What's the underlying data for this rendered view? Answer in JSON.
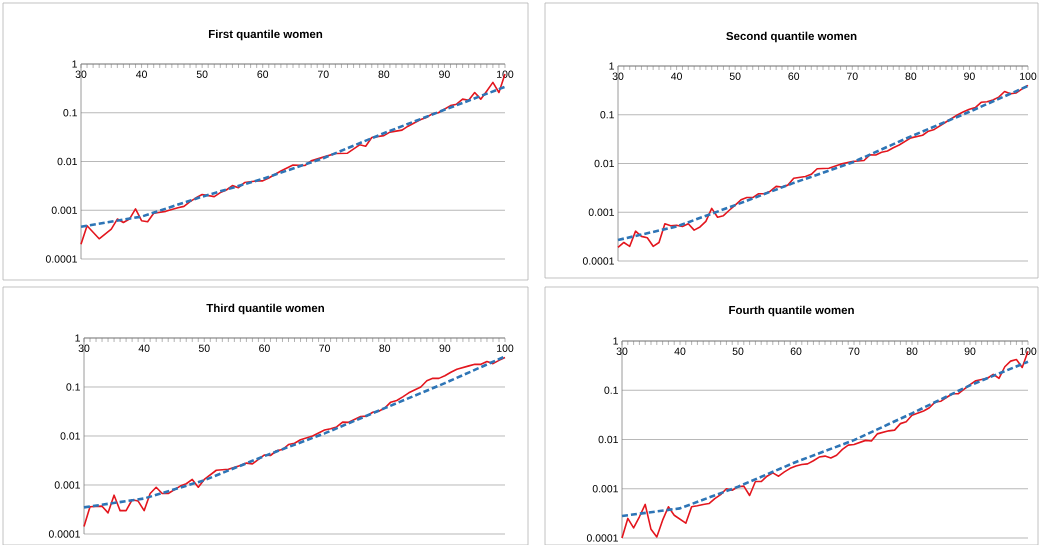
{
  "chart_data": [
    {
      "type": "line",
      "title": "First quantile women",
      "xlim": [
        30,
        100
      ],
      "ylim": [
        0.0001,
        1
      ],
      "log": "y",
      "grid": "y",
      "xticks": [
        30,
        {
          "value": 31,
          "label": null
        },
        {
          "value": 32,
          "label": null
        },
        {
          "value": 33,
          "label": null
        },
        {
          "value": 34,
          "label": null
        },
        {
          "value": 35,
          "label": null
        },
        {
          "value": 36,
          "label": null
        },
        {
          "value": 37,
          "label": null
        },
        {
          "value": 38,
          "label": null
        },
        {
          "value": 39,
          "label": null
        },
        40,
        {
          "value": 41,
          "label": null
        },
        {
          "value": 42,
          "label": null
        },
        {
          "value": 43,
          "label": null
        },
        {
          "value": 44,
          "label": null
        },
        {
          "value": 45,
          "label": null
        },
        {
          "value": 46,
          "label": null
        },
        {
          "value": 47,
          "label": null
        },
        {
          "value": 48,
          "label": null
        },
        {
          "value": 49,
          "label": null
        },
        50,
        {
          "value": 51,
          "label": null
        },
        {
          "value": 52,
          "label": null
        },
        {
          "value": 53,
          "label": null
        },
        {
          "value": 54,
          "label": null
        },
        {
          "value": 55,
          "label": null
        },
        {
          "value": 56,
          "label": null
        },
        {
          "value": 57,
          "label": null
        },
        {
          "value": 58,
          "label": null
        },
        {
          "value": 59,
          "label": null
        },
        60,
        {
          "value": 61,
          "label": null
        },
        {
          "value": 62,
          "label": null
        },
        {
          "value": 63,
          "label": null
        },
        {
          "value": 64,
          "label": null
        },
        {
          "value": 65,
          "label": null
        },
        {
          "value": 66,
          "label": null
        },
        {
          "value": 67,
          "label": null
        },
        {
          "value": 68,
          "label": null
        },
        {
          "value": 69,
          "label": null
        },
        70,
        {
          "value": 71,
          "label": null
        },
        {
          "value": 72,
          "label": null
        },
        {
          "value": 73,
          "label": null
        },
        {
          "value": 74,
          "label": null
        },
        {
          "value": 75,
          "label": null
        },
        {
          "value": 76,
          "label": null
        },
        {
          "value": 77,
          "label": null
        },
        {
          "value": 78,
          "label": null
        },
        {
          "value": 79,
          "label": null
        },
        80,
        {
          "value": 81,
          "label": null
        },
        {
          "value": 82,
          "label": null
        },
        {
          "value": 83,
          "label": null
        },
        {
          "value": 84,
          "label": null
        },
        {
          "value": 85,
          "label": null
        },
        {
          "value": 86,
          "label": null
        },
        {
          "value": 87,
          "label": null
        },
        {
          "value": 88,
          "label": null
        },
        {
          "value": 89,
          "label": null
        },
        90,
        {
          "value": 91,
          "label": null
        },
        {
          "value": 92,
          "label": null
        },
        {
          "value": 93,
          "label": null
        },
        {
          "value": 94,
          "label": null
        },
        {
          "value": 95,
          "label": null
        },
        {
          "value": 96,
          "label": null
        },
        {
          "value": 97,
          "label": null
        },
        {
          "value": 98,
          "label": null
        },
        {
          "value": 99,
          "label": null
        },
        100
      ],
      "yticks": [
        0.0001,
        0.001,
        0.01,
        0.1,
        1
      ],
      "series": [
        {
          "color": "#e3161e",
          "line_style": "solid",
          "x": [
            30,
            31,
            33,
            35,
            36,
            37,
            38,
            39,
            40,
            41,
            42,
            44,
            46,
            47,
            48,
            49,
            50,
            52,
            53,
            54,
            55,
            56,
            57,
            59,
            60,
            61,
            63,
            65,
            67,
            68,
            70,
            72,
            74,
            76,
            77,
            78,
            80,
            81,
            83,
            84,
            86,
            87,
            88,
            89,
            91,
            92,
            93,
            94,
            95,
            96,
            97,
            98,
            99,
            100
          ],
          "values": [
            0.0002,
            0.00048,
            0.00026,
            0.00041,
            0.00066,
            0.00056,
            0.00066,
            0.00107,
            0.00061,
            0.00058,
            0.00087,
            0.00095,
            0.00113,
            0.0012,
            0.0015,
            0.0018,
            0.0021,
            0.0019,
            0.0023,
            0.0026,
            0.0032,
            0.0029,
            0.0037,
            0.004,
            0.004,
            0.0046,
            0.0064,
            0.0085,
            0.0083,
            0.0103,
            0.0123,
            0.0146,
            0.0148,
            0.022,
            0.0206,
            0.031,
            0.034,
            0.04,
            0.044,
            0.053,
            0.072,
            0.08,
            0.095,
            0.1,
            0.14,
            0.15,
            0.19,
            0.18,
            0.26,
            0.19,
            0.28,
            0.42,
            0.26,
            0.62
          ]
        },
        {
          "color": "#2e75b6",
          "line_style": "dashed",
          "x": [
            30,
            40,
            50,
            60,
            70,
            80,
            90,
            100
          ],
          "values": [
            0.00046,
            0.00074,
            0.0019,
            0.0044,
            0.0117,
            0.038,
            0.115,
            0.34
          ]
        }
      ]
    },
    {
      "type": "line",
      "title": "Second quantile women",
      "xlim": [
        30,
        100
      ],
      "ylim": [
        0.0001,
        1
      ],
      "log": "y",
      "grid": "y",
      "xticks": [
        30,
        {
          "value": 31,
          "label": null
        },
        {
          "value": 32,
          "label": null
        },
        {
          "value": 33,
          "label": null
        },
        {
          "value": 34,
          "label": null
        },
        {
          "value": 35,
          "label": null
        },
        {
          "value": 36,
          "label": null
        },
        {
          "value": 37,
          "label": null
        },
        {
          "value": 38,
          "label": null
        },
        {
          "value": 39,
          "label": null
        },
        40,
        {
          "value": 41,
          "label": null
        },
        {
          "value": 42,
          "label": null
        },
        {
          "value": 43,
          "label": null
        },
        {
          "value": 44,
          "label": null
        },
        {
          "value": 45,
          "label": null
        },
        {
          "value": 46,
          "label": null
        },
        {
          "value": 47,
          "label": null
        },
        {
          "value": 48,
          "label": null
        },
        {
          "value": 49,
          "label": null
        },
        50,
        {
          "value": 51,
          "label": null
        },
        {
          "value": 52,
          "label": null
        },
        {
          "value": 53,
          "label": null
        },
        {
          "value": 54,
          "label": null
        },
        {
          "value": 55,
          "label": null
        },
        {
          "value": 56,
          "label": null
        },
        {
          "value": 57,
          "label": null
        },
        {
          "value": 58,
          "label": null
        },
        {
          "value": 59,
          "label": null
        },
        60,
        {
          "value": 61,
          "label": null
        },
        {
          "value": 62,
          "label": null
        },
        {
          "value": 63,
          "label": null
        },
        {
          "value": 64,
          "label": null
        },
        {
          "value": 65,
          "label": null
        },
        {
          "value": 66,
          "label": null
        },
        {
          "value": 67,
          "label": null
        },
        {
          "value": 68,
          "label": null
        },
        {
          "value": 69,
          "label": null
        },
        70,
        {
          "value": 71,
          "label": null
        },
        {
          "value": 72,
          "label": null
        },
        {
          "value": 73,
          "label": null
        },
        {
          "value": 74,
          "label": null
        },
        {
          "value": 75,
          "label": null
        },
        {
          "value": 76,
          "label": null
        },
        {
          "value": 77,
          "label": null
        },
        {
          "value": 78,
          "label": null
        },
        {
          "value": 79,
          "label": null
        },
        80,
        {
          "value": 81,
          "label": null
        },
        {
          "value": 82,
          "label": null
        },
        {
          "value": 83,
          "label": null
        },
        {
          "value": 84,
          "label": null
        },
        {
          "value": 85,
          "label": null
        },
        {
          "value": 86,
          "label": null
        },
        {
          "value": 87,
          "label": null
        },
        {
          "value": 88,
          "label": null
        },
        {
          "value": 89,
          "label": null
        },
        90,
        {
          "value": 91,
          "label": null
        },
        {
          "value": 92,
          "label": null
        },
        {
          "value": 93,
          "label": null
        },
        {
          "value": 94,
          "label": null
        },
        {
          "value": 95,
          "label": null
        },
        {
          "value": 96,
          "label": null
        },
        {
          "value": 97,
          "label": null
        },
        {
          "value": 98,
          "label": null
        },
        {
          "value": 99,
          "label": null
        },
        100
      ],
      "yticks": [
        0.0001,
        0.001,
        0.01,
        0.1,
        1
      ],
      "series": [
        {
          "color": "#e3161e",
          "line_style": "solid",
          "x": [
            30,
            31,
            32,
            33,
            34,
            35,
            36,
            37,
            38,
            39,
            40,
            41,
            42,
            43,
            44,
            45,
            46,
            47,
            48,
            49,
            50,
            51,
            52,
            53,
            54,
            55,
            56,
            57,
            58,
            59,
            60,
            62,
            63,
            64,
            66,
            68,
            70,
            72,
            73,
            74,
            75,
            76,
            77,
            78,
            80,
            82,
            83,
            84,
            86,
            88,
            89,
            90,
            91,
            92,
            93,
            94,
            95,
            96,
            97,
            98,
            99,
            100
          ],
          "values": [
            0.00019,
            0.00024,
            0.0002,
            0.00041,
            0.00032,
            0.0003,
            0.0002,
            0.00024,
            0.00058,
            0.00053,
            0.00054,
            0.00051,
            0.00058,
            0.00043,
            0.0005,
            0.00065,
            0.0012,
            0.00079,
            0.00085,
            0.0011,
            0.0014,
            0.0018,
            0.002,
            0.002,
            0.0024,
            0.0024,
            0.0027,
            0.0034,
            0.0033,
            0.0036,
            0.005,
            0.0054,
            0.006,
            0.0078,
            0.008,
            0.0097,
            0.011,
            0.0115,
            0.015,
            0.0149,
            0.017,
            0.018,
            0.021,
            0.024,
            0.0335,
            0.038,
            0.046,
            0.05,
            0.071,
            0.1,
            0.115,
            0.13,
            0.14,
            0.18,
            0.185,
            0.2,
            0.23,
            0.3,
            0.27,
            0.28,
            0.34,
            0.4
          ]
        },
        {
          "color": "#2e75b6",
          "line_style": "dashed",
          "x": [
            30,
            40,
            50,
            60,
            70,
            80,
            90,
            100
          ],
          "values": [
            0.00027,
            0.00051,
            0.0014,
            0.004,
            0.0105,
            0.036,
            0.115,
            0.39
          ]
        }
      ]
    },
    {
      "type": "line",
      "title": "Third quantile women",
      "xlim": [
        30,
        100
      ],
      "ylim": [
        0.0001,
        1
      ],
      "log": "y",
      "grid": "y",
      "xticks": [
        30,
        {
          "value": 31,
          "label": null
        },
        {
          "value": 32,
          "label": null
        },
        {
          "value": 33,
          "label": null
        },
        {
          "value": 34,
          "label": null
        },
        {
          "value": 35,
          "label": null
        },
        {
          "value": 36,
          "label": null
        },
        {
          "value": 37,
          "label": null
        },
        {
          "value": 38,
          "label": null
        },
        {
          "value": 39,
          "label": null
        },
        40,
        {
          "value": 41,
          "label": null
        },
        {
          "value": 42,
          "label": null
        },
        {
          "value": 43,
          "label": null
        },
        {
          "value": 44,
          "label": null
        },
        {
          "value": 45,
          "label": null
        },
        {
          "value": 46,
          "label": null
        },
        {
          "value": 47,
          "label": null
        },
        {
          "value": 48,
          "label": null
        },
        {
          "value": 49,
          "label": null
        },
        50,
        {
          "value": 51,
          "label": null
        },
        {
          "value": 52,
          "label": null
        },
        {
          "value": 53,
          "label": null
        },
        {
          "value": 54,
          "label": null
        },
        {
          "value": 55,
          "label": null
        },
        {
          "value": 56,
          "label": null
        },
        {
          "value": 57,
          "label": null
        },
        {
          "value": 58,
          "label": null
        },
        {
          "value": 59,
          "label": null
        },
        60,
        {
          "value": 61,
          "label": null
        },
        {
          "value": 62,
          "label": null
        },
        {
          "value": 63,
          "label": null
        },
        {
          "value": 64,
          "label": null
        },
        {
          "value": 65,
          "label": null
        },
        {
          "value": 66,
          "label": null
        },
        {
          "value": 67,
          "label": null
        },
        {
          "value": 68,
          "label": null
        },
        {
          "value": 69,
          "label": null
        },
        70,
        {
          "value": 71,
          "label": null
        },
        {
          "value": 72,
          "label": null
        },
        {
          "value": 73,
          "label": null
        },
        {
          "value": 74,
          "label": null
        },
        {
          "value": 75,
          "label": null
        },
        {
          "value": 76,
          "label": null
        },
        {
          "value": 77,
          "label": null
        },
        {
          "value": 78,
          "label": null
        },
        {
          "value": 79,
          "label": null
        },
        80,
        {
          "value": 81,
          "label": null
        },
        {
          "value": 82,
          "label": null
        },
        {
          "value": 83,
          "label": null
        },
        {
          "value": 84,
          "label": null
        },
        {
          "value": 85,
          "label": null
        },
        {
          "value": 86,
          "label": null
        },
        {
          "value": 87,
          "label": null
        },
        {
          "value": 88,
          "label": null
        },
        {
          "value": 89,
          "label": null
        },
        90,
        {
          "value": 91,
          "label": null
        },
        {
          "value": 92,
          "label": null
        },
        {
          "value": 93,
          "label": null
        },
        {
          "value": 94,
          "label": null
        },
        {
          "value": 95,
          "label": null
        },
        {
          "value": 96,
          "label": null
        },
        {
          "value": 97,
          "label": null
        },
        {
          "value": 98,
          "label": null
        },
        {
          "value": 99,
          "label": null
        },
        100
      ],
      "yticks": [
        0.0001,
        0.001,
        0.01,
        0.1,
        1
      ],
      "series": [
        {
          "color": "#e3161e",
          "line_style": "solid",
          "x": [
            30,
            31,
            33,
            34,
            35,
            36,
            37,
            38,
            39,
            40,
            41,
            42,
            43,
            44,
            46,
            47,
            48,
            49,
            50,
            52,
            54,
            56,
            57,
            58,
            60,
            61,
            62,
            63,
            64,
            65,
            66,
            68,
            70,
            71,
            72,
            73,
            74,
            76,
            77,
            78,
            79,
            80,
            81,
            82,
            83,
            84,
            86,
            87,
            88,
            89,
            90,
            91,
            92,
            94,
            95,
            96,
            97,
            98,
            99,
            100
          ],
          "values": [
            0.000143,
            0.00036,
            0.00037,
            0.00027,
            0.00062,
            0.0003,
            0.0003,
            0.0005,
            0.00047,
            0.0003,
            0.00067,
            0.0009,
            0.00067,
            0.00067,
            0.00095,
            0.00106,
            0.0013,
            0.0009,
            0.0013,
            0.002,
            0.0021,
            0.0025,
            0.0028,
            0.0027,
            0.0041,
            0.004,
            0.005,
            0.0053,
            0.0067,
            0.0071,
            0.0084,
            0.01,
            0.0132,
            0.0141,
            0.0153,
            0.0192,
            0.019,
            0.025,
            0.0255,
            0.0305,
            0.032,
            0.037,
            0.049,
            0.053,
            0.063,
            0.076,
            0.1,
            0.134,
            0.15,
            0.15,
            0.17,
            0.2,
            0.23,
            0.27,
            0.29,
            0.29,
            0.33,
            0.3,
            0.35,
            0.4
          ]
        },
        {
          "color": "#2e75b6",
          "line_style": "dashed",
          "x": [
            30,
            40,
            50,
            60,
            70,
            80,
            90,
            100
          ],
          "values": [
            0.00035,
            0.00053,
            0.00125,
            0.0039,
            0.0113,
            0.037,
            0.12,
            0.42
          ]
        }
      ]
    },
    {
      "type": "line",
      "title": "Fourth quantile women",
      "xlim": [
        30,
        100
      ],
      "ylim": [
        0.0001,
        1
      ],
      "log": "y",
      "grid": "y",
      "xticks": [
        30,
        {
          "value": 31,
          "label": null
        },
        {
          "value": 32,
          "label": null
        },
        {
          "value": 33,
          "label": null
        },
        {
          "value": 34,
          "label": null
        },
        {
          "value": 35,
          "label": null
        },
        {
          "value": 36,
          "label": null
        },
        {
          "value": 37,
          "label": null
        },
        {
          "value": 38,
          "label": null
        },
        {
          "value": 39,
          "label": null
        },
        40,
        {
          "value": 41,
          "label": null
        },
        {
          "value": 42,
          "label": null
        },
        {
          "value": 43,
          "label": null
        },
        {
          "value": 44,
          "label": null
        },
        {
          "value": 45,
          "label": null
        },
        {
          "value": 46,
          "label": null
        },
        {
          "value": 47,
          "label": null
        },
        {
          "value": 48,
          "label": null
        },
        {
          "value": 49,
          "label": null
        },
        50,
        {
          "value": 51,
          "label": null
        },
        {
          "value": 52,
          "label": null
        },
        {
          "value": 53,
          "label": null
        },
        {
          "value": 54,
          "label": null
        },
        {
          "value": 55,
          "label": null
        },
        {
          "value": 56,
          "label": null
        },
        {
          "value": 57,
          "label": null
        },
        {
          "value": 58,
          "label": null
        },
        {
          "value": 59,
          "label": null
        },
        60,
        {
          "value": 61,
          "label": null
        },
        {
          "value": 62,
          "label": null
        },
        {
          "value": 63,
          "label": null
        },
        {
          "value": 64,
          "label": null
        },
        {
          "value": 65,
          "label": null
        },
        {
          "value": 66,
          "label": null
        },
        {
          "value": 67,
          "label": null
        },
        {
          "value": 68,
          "label": null
        },
        {
          "value": 69,
          "label": null
        },
        70,
        {
          "value": 71,
          "label": null
        },
        {
          "value": 72,
          "label": null
        },
        {
          "value": 73,
          "label": null
        },
        {
          "value": 74,
          "label": null
        },
        {
          "value": 75,
          "label": null
        },
        {
          "value": 76,
          "label": null
        },
        {
          "value": 77,
          "label": null
        },
        {
          "value": 78,
          "label": null
        },
        {
          "value": 79,
          "label": null
        },
        80,
        {
          "value": 81,
          "label": null
        },
        {
          "value": 82,
          "label": null
        },
        {
          "value": 83,
          "label": null
        },
        {
          "value": 84,
          "label": null
        },
        {
          "value": 85,
          "label": null
        },
        {
          "value": 86,
          "label": null
        },
        {
          "value": 87,
          "label": null
        },
        {
          "value": 88,
          "label": null
        },
        {
          "value": 89,
          "label": null
        },
        90,
        {
          "value": 91,
          "label": null
        },
        {
          "value": 92,
          "label": null
        },
        {
          "value": 93,
          "label": null
        },
        {
          "value": 94,
          "label": null
        },
        {
          "value": 95,
          "label": null
        },
        {
          "value": 96,
          "label": null
        },
        {
          "value": 97,
          "label": null
        },
        {
          "value": 98,
          "label": null
        },
        {
          "value": 99,
          "label": null
        },
        100
      ],
      "yticks": [
        0.0001,
        0.001,
        0.01,
        0.1,
        1
      ],
      "series": [
        {
          "color": "#e3161e",
          "line_style": "solid",
          "x": [
            30,
            31,
            32,
            33,
            34,
            35,
            36,
            37,
            38,
            39,
            41,
            42,
            43,
            44,
            45,
            46,
            47,
            48,
            49,
            50,
            51,
            52,
            53,
            54,
            55,
            56,
            57,
            58,
            59,
            60,
            61,
            62,
            63,
            64,
            65,
            66,
            67,
            68,
            69,
            70,
            72,
            73,
            74,
            76,
            77,
            78,
            79,
            80,
            82,
            83,
            84,
            85,
            86,
            87,
            88,
            89,
            90,
            91,
            93,
            94,
            95,
            96,
            97,
            98,
            99,
            100
          ],
          "values": [
            0.0001,
            0.00025,
            0.00016,
            0.00027,
            0.00048,
            0.00015,
            0.000105,
            0.00023,
            0.00043,
            0.00029,
            0.0002,
            0.00043,
            0.00045,
            0.00048,
            0.0005,
            0.00063,
            0.00076,
            0.001,
            0.00093,
            0.0011,
            0.00113,
            0.00073,
            0.0014,
            0.0014,
            0.0018,
            0.0021,
            0.0018,
            0.0022,
            0.0026,
            0.0029,
            0.0031,
            0.0032,
            0.0037,
            0.0044,
            0.0046,
            0.0042,
            0.0048,
            0.0063,
            0.0077,
            0.0079,
            0.0096,
            0.0093,
            0.013,
            0.015,
            0.0155,
            0.021,
            0.023,
            0.031,
            0.038,
            0.044,
            0.058,
            0.06,
            0.072,
            0.085,
            0.085,
            0.105,
            0.13,
            0.156,
            0.175,
            0.21,
            0.175,
            0.3,
            0.39,
            0.42,
            0.29,
            0.62
          ]
        },
        {
          "color": "#2e75b6",
          "line_style": "dashed",
          "x": [
            30,
            40,
            50,
            60,
            70,
            80,
            90,
            100
          ],
          "values": [
            0.00028,
            0.0004,
            0.0011,
            0.0035,
            0.0097,
            0.034,
            0.126,
            0.38
          ]
        }
      ]
    }
  ]
}
